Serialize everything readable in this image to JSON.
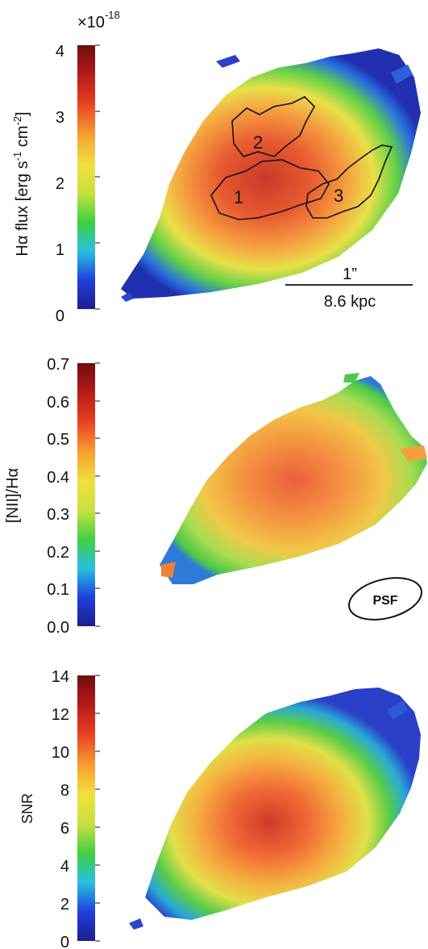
{
  "chart_data": [
    {
      "type": "heatmap",
      "panel": "halpha_flux",
      "ylabel": "Hα flux [erg s-1 cm-2]",
      "ylabel_parts": {
        "lead": "Hα flux [erg s",
        "sup1": "-1",
        "mid": " cm",
        "sup2": "-2",
        "tail": "]"
      },
      "multiplier_label": "×10",
      "multiplier_exponent": "-18",
      "colorbar_range": [
        0,
        4
      ],
      "colorbar_ticks": [
        "0",
        "1",
        "2",
        "3",
        "4"
      ],
      "regions": [
        "1",
        "2",
        "3"
      ],
      "scale_bar": {
        "angular_label": "1”",
        "physical_label": "8.6 kpc"
      },
      "colormap": [
        "#1e1e8c",
        "#2040e0",
        "#28c0e0",
        "#40d040",
        "#c8e040",
        "#f0e040",
        "#f8a030",
        "#e84020",
        "#b01818",
        "#6e0e0e"
      ]
    },
    {
      "type": "heatmap",
      "panel": "nii_halpha_ratio",
      "ylabel": "[NII]/Hα",
      "colorbar_range": [
        0.0,
        0.7
      ],
      "colorbar_ticks": [
        "0.0",
        "0.1",
        "0.2",
        "0.3",
        "0.4",
        "0.5",
        "0.6",
        "0.7"
      ],
      "psf_label": "PSF",
      "colormap": [
        "#1e1e8c",
        "#2040e0",
        "#28c0e0",
        "#40d040",
        "#c8e040",
        "#f0e040",
        "#f8a030",
        "#e84020",
        "#b01818",
        "#6e0e0e"
      ]
    },
    {
      "type": "heatmap",
      "panel": "snr",
      "ylabel": "SNR",
      "colorbar_range": [
        0,
        14
      ],
      "colorbar_ticks": [
        "0",
        "2",
        "4",
        "6",
        "8",
        "10",
        "12",
        "14"
      ],
      "colormap": [
        "#1e1e8c",
        "#2040e0",
        "#28c0e0",
        "#40d040",
        "#c8e040",
        "#f0e040",
        "#f8a030",
        "#e84020",
        "#b01818",
        "#6e0e0e"
      ]
    }
  ]
}
